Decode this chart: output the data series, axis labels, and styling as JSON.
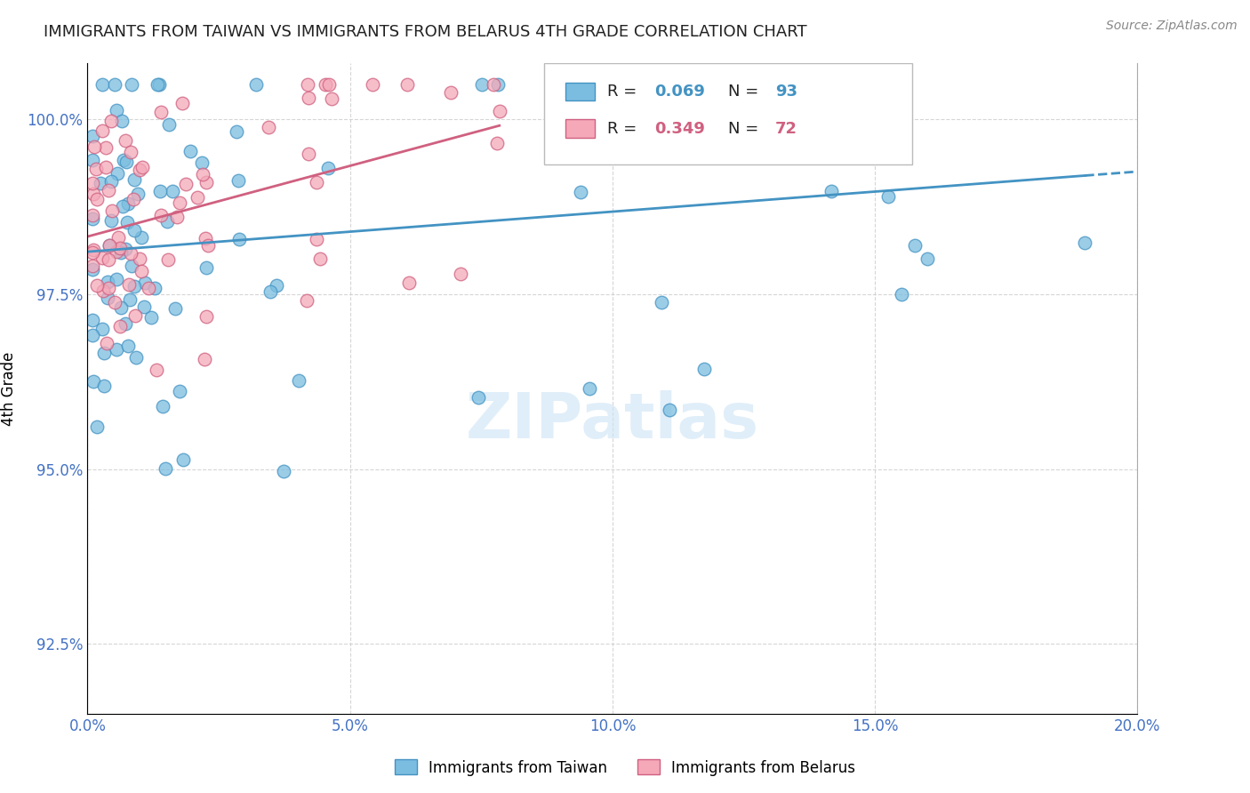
{
  "title": "IMMIGRANTS FROM TAIWAN VS IMMIGRANTS FROM BELARUS 4TH GRADE CORRELATION CHART",
  "source": "Source: ZipAtlas.com",
  "xlabel_ticks": [
    "0.0%",
    "5.0%",
    "10.0%",
    "15.0%",
    "20.0%"
  ],
  "xlabel_values": [
    0.0,
    0.05,
    0.1,
    0.15,
    0.2
  ],
  "ylabel_label": "4th Grade",
  "ylabel_ticks": [
    "92.5%",
    "95.0%",
    "97.5%",
    "100.0%"
  ],
  "ylabel_values": [
    92.5,
    95.0,
    97.5,
    100.0
  ],
  "xlim": [
    0.0,
    0.2
  ],
  "ylim": [
    91.5,
    100.8
  ],
  "taiwan_R": 0.069,
  "taiwan_N": 93,
  "belarus_R": 0.349,
  "belarus_N": 72,
  "taiwan_color": "#7bbde0",
  "taiwan_edge_color": "#4393c3",
  "belarus_color": "#f4a8b8",
  "belarus_edge_color": "#d06080",
  "watermark": "ZIPatlas",
  "grid_color": "#cccccc",
  "title_color": "#222222",
  "tick_color": "#4472c4"
}
